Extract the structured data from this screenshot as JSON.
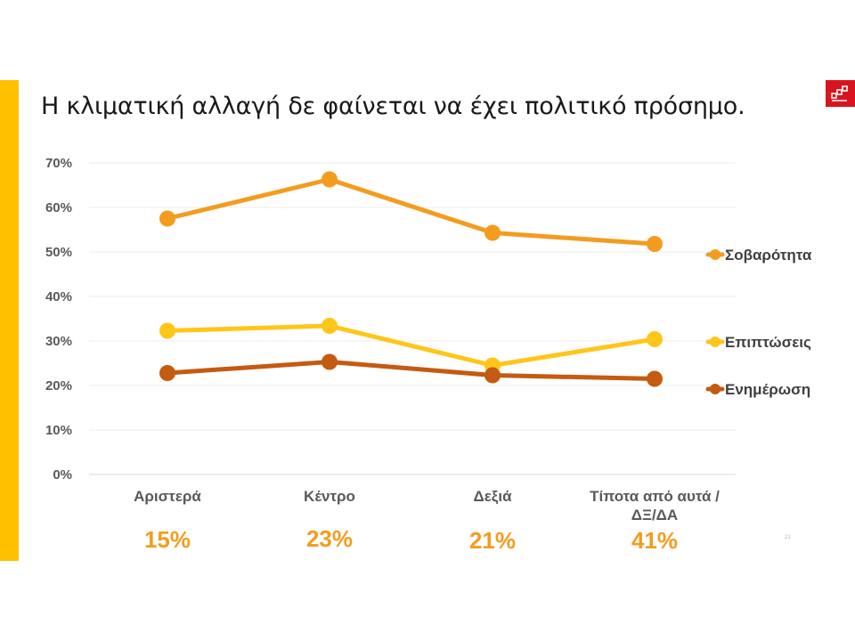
{
  "slide": {
    "title": "Η κλιματική αλλαγή δε φαίνεται να έχει πολιτικό πρόσημο.",
    "page_number": "21"
  },
  "colors": {
    "accent_bar": "#FFC000",
    "logo_bg": "#D9141E",
    "share_labels": "#F39C1F"
  },
  "chart_data": {
    "type": "line",
    "title": "",
    "xlabel": "",
    "ylabel": "",
    "categories": [
      "Αριστερά",
      "Κέντρο",
      "Δεξιά",
      "Τίποτα από αυτά / ΔΞ/ΔΑ"
    ],
    "category_label_lines": [
      [
        "Αριστερά"
      ],
      [
        "Κέντρο"
      ],
      [
        "Δεξιά"
      ],
      [
        "Τίποτα από αυτά /",
        "ΔΞ/ΔΑ"
      ]
    ],
    "category_shares": [
      "15%",
      "23%",
      "21%",
      "41%"
    ],
    "ylim": [
      0,
      70
    ],
    "y_ticks": [
      0,
      10,
      20,
      30,
      40,
      50,
      60,
      70
    ],
    "y_tick_labels": [
      "0%",
      "10%",
      "20%",
      "30%",
      "40%",
      "50%",
      "60%",
      "70%"
    ],
    "grid": true,
    "legend_position": "right",
    "series": [
      {
        "name": "Σοβαρότητα",
        "values": [
          57.5,
          66.3,
          54.3,
          51.8
        ],
        "color": "#F39C1F"
      },
      {
        "name": "Επιπτώσεις",
        "values": [
          32.3,
          33.4,
          24.5,
          30.4
        ],
        "color": "#FFC61A"
      },
      {
        "name": "Ενημέρωση",
        "values": [
          22.8,
          25.3,
          22.3,
          21.5
        ],
        "color": "#C55A11"
      }
    ]
  }
}
